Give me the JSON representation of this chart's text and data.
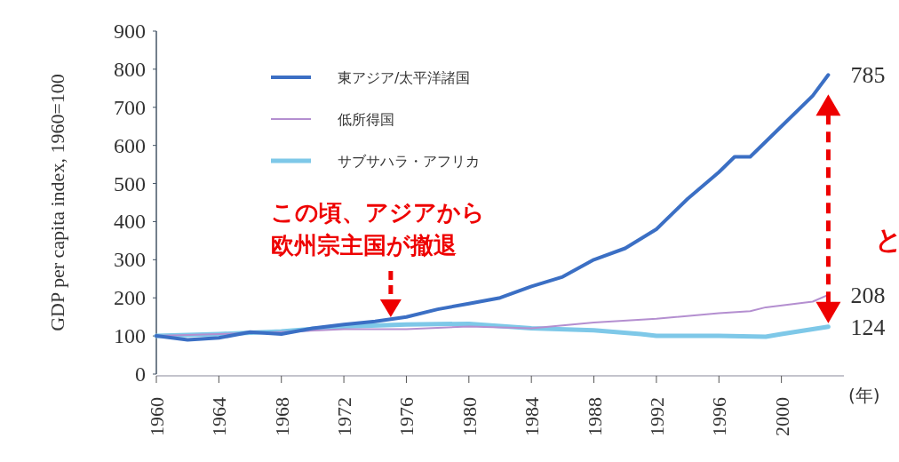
{
  "chart_data": {
    "type": "line",
    "ylabel": "GDP per capita index, 1960=100",
    "xlabel": "(年)",
    "xlim": [
      1960,
      2004
    ],
    "ylim": [
      0,
      900
    ],
    "xticks": [
      1960,
      1964,
      1968,
      1972,
      1976,
      1980,
      1984,
      1988,
      1992,
      1996,
      2000
    ],
    "yticks": [
      0,
      100,
      200,
      300,
      400,
      500,
      600,
      700,
      800,
      900
    ],
    "grid": false,
    "legend": "top left",
    "line_style": "solid",
    "annotations": [
      {
        "text": "この頃、アジアから欧州宗主国が撤退",
        "x": 1975,
        "y": 140
      },
      "と"
    ],
    "series": [
      {
        "name": "東アジア/太平洋諸国",
        "color": "#3b6fc4",
        "x": [
          1960,
          1962,
          1964,
          1966,
          1968,
          1970,
          1972,
          1974,
          1976,
          1978,
          1980,
          1982,
          1984,
          1986,
          1988,
          1990,
          1992,
          1994,
          1996,
          1997,
          1998,
          2000,
          2002,
          2003
        ],
        "values": [
          100,
          90,
          95,
          110,
          105,
          120,
          130,
          138,
          150,
          170,
          185,
          200,
          230,
          255,
          300,
          330,
          380,
          460,
          530,
          570,
          570,
          650,
          730,
          785
        ],
        "value_labels": [
          null,
          null,
          null,
          null,
          null,
          null,
          null,
          null,
          null,
          null,
          null,
          null,
          null,
          null,
          null,
          null,
          null,
          null,
          null,
          null,
          null,
          null,
          null,
          "785"
        ]
      },
      {
        "name": "低所得国",
        "color": "#b48fd0",
        "x": [
          1960,
          1964,
          1968,
          1972,
          1976,
          1980,
          1984,
          1988,
          1992,
          1996,
          1998,
          1999,
          2002,
          2003
        ],
        "values": [
          100,
          105,
          110,
          118,
          118,
          125,
          120,
          135,
          145,
          160,
          165,
          175,
          190,
          208
        ],
        "value_labels": [
          null,
          null,
          null,
          null,
          null,
          null,
          null,
          null,
          null,
          null,
          null,
          null,
          null,
          "208"
        ]
      },
      {
        "name": "サブサハラ・アフリカ",
        "color": "#7ec8e8",
        "x": [
          1960,
          1964,
          1968,
          1972,
          1976,
          1980,
          1984,
          1988,
          1991,
          1992,
          1996,
          1999,
          2000,
          2003
        ],
        "values": [
          100,
          105,
          112,
          125,
          130,
          132,
          120,
          115,
          105,
          100,
          100,
          98,
          105,
          124
        ],
        "value_labels": [
          null,
          null,
          null,
          null,
          null,
          null,
          null,
          null,
          null,
          null,
          null,
          null,
          null,
          "124"
        ]
      }
    ]
  }
}
